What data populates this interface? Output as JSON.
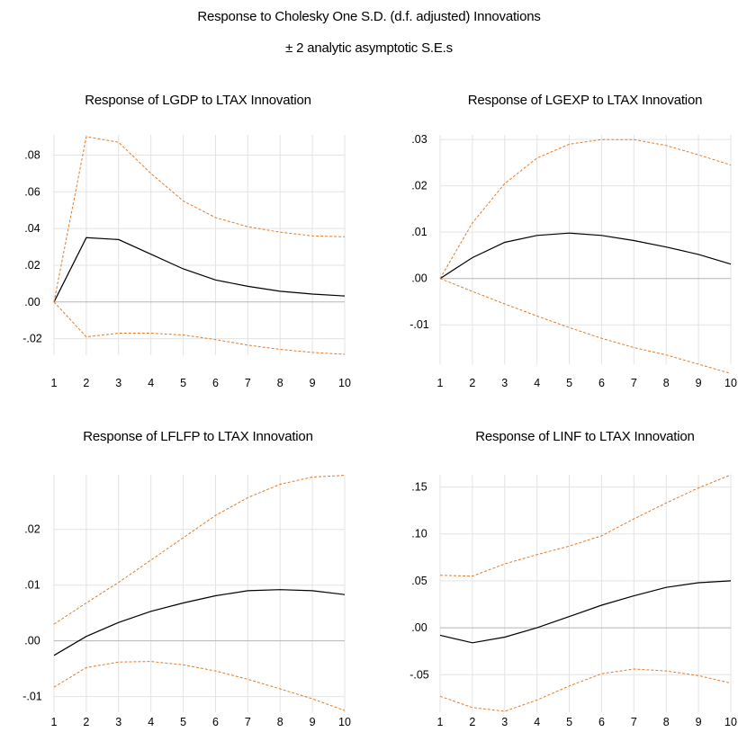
{
  "figure": {
    "title": "Response to Cholesky One S.D. (d.f. adjusted) Innovations",
    "subtitle": "± 2 analytic asymptotic S.E.s",
    "colors": {
      "response": "#000000",
      "band": "#e07b2a",
      "grid": "#e3e3e3",
      "zero_line": "#b5b5b5"
    }
  },
  "chart_data": [
    {
      "type": "line",
      "title": "Response of LGDP to LTAX Innovation",
      "x": [
        1,
        2,
        3,
        4,
        5,
        6,
        7,
        8,
        9,
        10
      ],
      "y_ticks": [
        ".08",
        ".06",
        ".04",
        ".02",
        ".00",
        "-.02"
      ],
      "y_tick_values": [
        0.08,
        0.06,
        0.04,
        0.02,
        0.0,
        -0.02
      ],
      "ylim": [
        -0.029,
        0.091
      ],
      "grid": true,
      "series": [
        {
          "role": "response",
          "values": [
            0.0,
            0.035,
            0.034,
            0.026,
            0.018,
            0.012,
            0.0085,
            0.0058,
            0.0043,
            0.0033
          ]
        },
        {
          "role": "upper",
          "values": [
            0.0,
            0.09,
            0.087,
            0.07,
            0.055,
            0.046,
            0.041,
            0.038,
            0.036,
            0.0355
          ]
        },
        {
          "role": "lower",
          "values": [
            0.0,
            -0.019,
            -0.017,
            -0.017,
            -0.018,
            -0.0205,
            -0.0235,
            -0.0258,
            -0.0275,
            -0.0285
          ]
        }
      ]
    },
    {
      "type": "line",
      "title": "Response of LGEXP to LTAX Innovation",
      "x": [
        1,
        2,
        3,
        4,
        5,
        6,
        7,
        8,
        9,
        10
      ],
      "y_ticks": [
        ".03",
        ".02",
        ".01",
        ".00",
        "-.01"
      ],
      "y_tick_values": [
        0.03,
        0.02,
        0.01,
        0.0,
        -0.01
      ],
      "ylim": [
        -0.0185,
        0.031
      ],
      "grid": true,
      "series": [
        {
          "role": "response",
          "values": [
            0.0,
            0.0045,
            0.0078,
            0.0093,
            0.0098,
            0.0093,
            0.0082,
            0.0068,
            0.0052,
            0.0031
          ]
        },
        {
          "role": "upper",
          "values": [
            0.0,
            0.012,
            0.0205,
            0.026,
            0.029,
            0.03,
            0.03,
            0.0287,
            0.0267,
            0.0245
          ]
        },
        {
          "role": "lower",
          "values": [
            0.0,
            -0.0028,
            -0.0055,
            -0.0081,
            -0.0106,
            -0.0129,
            -0.0149,
            -0.0165,
            -0.0185,
            -0.0205
          ]
        }
      ]
    },
    {
      "type": "line",
      "title": "Response of LFLFP to LTAX Innovation",
      "x": [
        1,
        2,
        3,
        4,
        5,
        6,
        7,
        8,
        9,
        10
      ],
      "y_ticks": [
        ".02",
        ".01",
        ".00",
        "-.01"
      ],
      "y_tick_values": [
        0.02,
        0.01,
        0.0,
        -0.01
      ],
      "ylim": [
        -0.0128,
        0.0298
      ],
      "grid": true,
      "series": [
        {
          "role": "response",
          "values": [
            -0.0026,
            0.0008,
            0.0033,
            0.0053,
            0.0068,
            0.0081,
            0.009,
            0.0092,
            0.009,
            0.0083
          ]
        },
        {
          "role": "upper",
          "values": [
            0.003,
            0.0068,
            0.0105,
            0.0145,
            0.0185,
            0.0225,
            0.0257,
            0.0281,
            0.0294,
            0.0297
          ]
        },
        {
          "role": "lower",
          "values": [
            -0.0083,
            -0.0048,
            -0.0038,
            -0.0037,
            -0.0043,
            -0.0054,
            -0.0069,
            -0.0086,
            -0.0104,
            -0.0125
          ]
        }
      ]
    },
    {
      "type": "line",
      "title": "Response of LINF to LTAX Innovation",
      "x": [
        1,
        2,
        3,
        4,
        5,
        6,
        7,
        8,
        9,
        10
      ],
      "y_ticks": [
        ".15",
        ".10",
        ".05",
        ".00",
        "-.05"
      ],
      "y_tick_values": [
        0.15,
        0.1,
        0.05,
        0.0,
        -0.05
      ],
      "ylim": [
        -0.09,
        0.163
      ],
      "grid": true,
      "series": [
        {
          "role": "response",
          "values": [
            -0.008,
            -0.016,
            -0.01,
            0.0,
            0.012,
            0.024,
            0.034,
            0.043,
            0.048,
            0.05
          ]
        },
        {
          "role": "upper",
          "values": [
            0.056,
            0.055,
            0.068,
            0.078,
            0.087,
            0.098,
            0.116,
            0.133,
            0.149,
            0.163
          ]
        },
        {
          "role": "lower",
          "values": [
            -0.073,
            -0.085,
            -0.089,
            -0.077,
            -0.062,
            -0.049,
            -0.044,
            -0.046,
            -0.051,
            -0.059
          ]
        }
      ]
    }
  ]
}
